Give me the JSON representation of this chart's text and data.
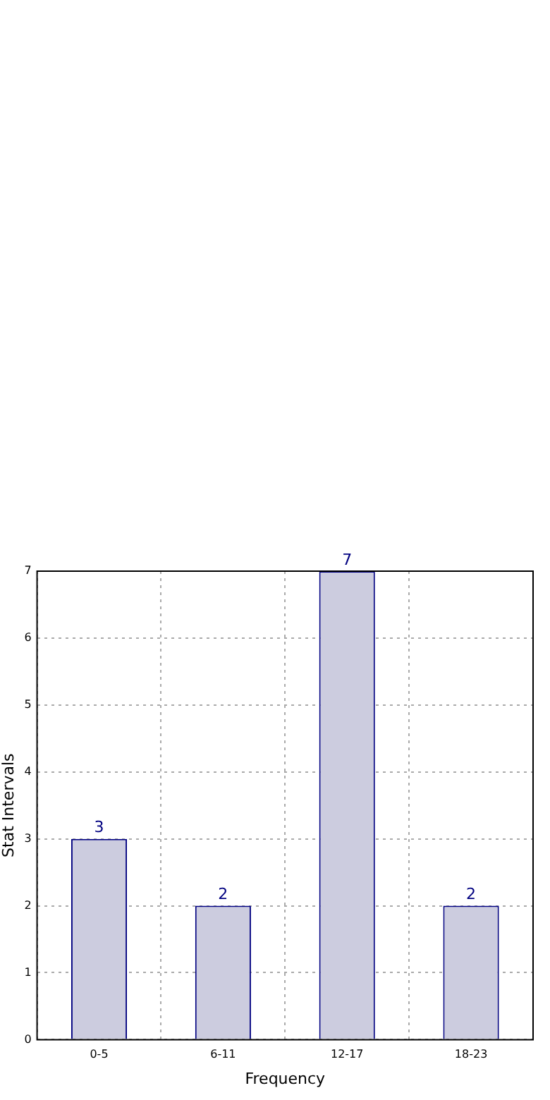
{
  "chart_data": {
    "type": "bar",
    "xlabel": "Frequency",
    "ylabel": "Stat Intervals",
    "categories": [
      "0-5",
      "6-11",
      "12-17",
      "18-23"
    ],
    "values": [
      3,
      2,
      7,
      2
    ],
    "color": "#ccccdf",
    "ylim": [
      0,
      7
    ],
    "yticks": [
      0,
      1,
      2,
      3,
      4,
      5,
      6,
      7
    ],
    "grid": true,
    "data_labels": true
  }
}
